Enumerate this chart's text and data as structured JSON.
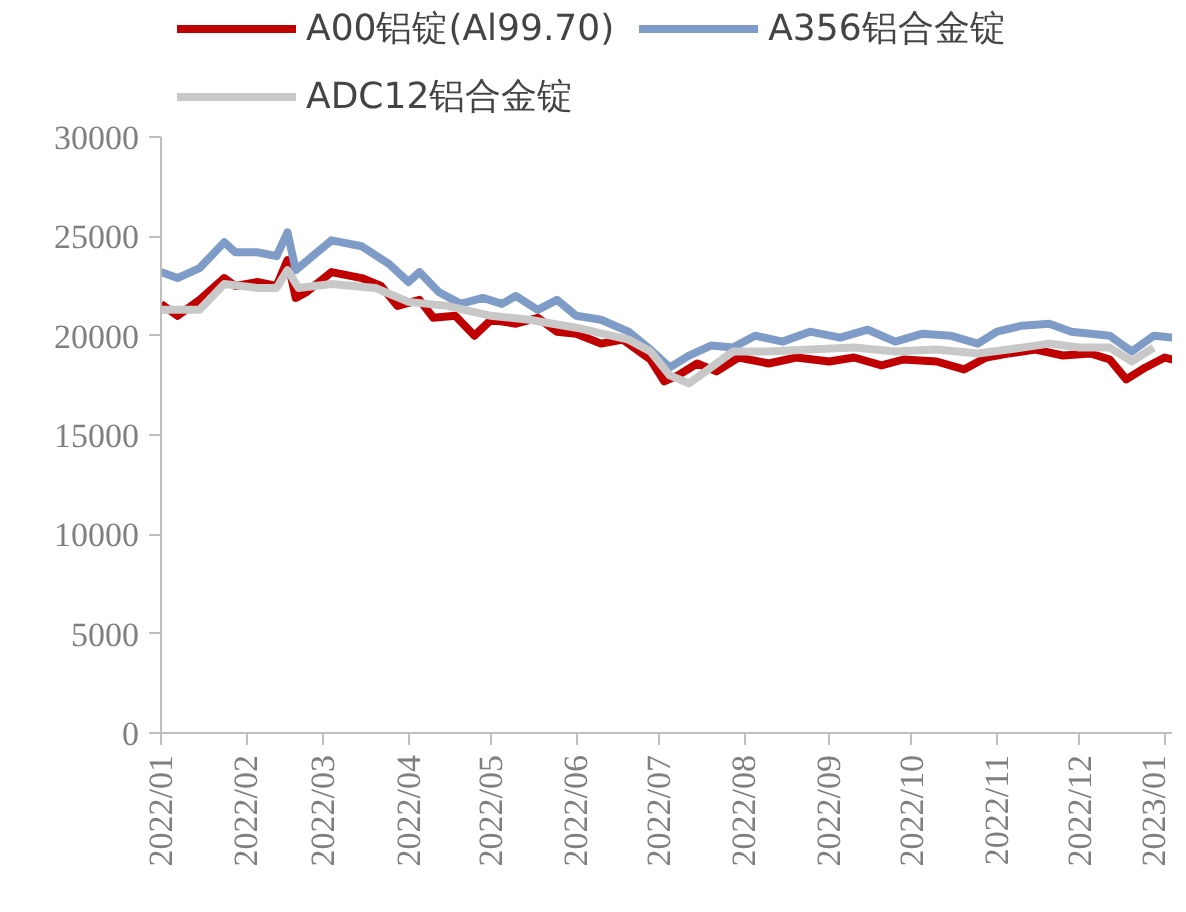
{
  "chart_data": {
    "type": "line",
    "xlim": [
      "2022-01-01",
      "2023-01-04"
    ],
    "ylim": [
      0,
      30000
    ],
    "yticks": [
      0,
      5000,
      10000,
      15000,
      20000,
      25000,
      30000
    ],
    "xticks": [
      {
        "value": "2022-01-01",
        "label": "2022/01"
      },
      {
        "value": "2022-02-01",
        "label": "2022/02"
      },
      {
        "value": "2022-03-01",
        "label": "2022/03"
      },
      {
        "value": "2022-04-01",
        "label": "2022/04"
      },
      {
        "value": "2022-05-01",
        "label": "2022/05"
      },
      {
        "value": "2022-06-01",
        "label": "2022/06"
      },
      {
        "value": "2022-07-01",
        "label": "2022/07"
      },
      {
        "value": "2022-08-01",
        "label": "2022/08"
      },
      {
        "value": "2022-09-01",
        "label": "2022/09"
      },
      {
        "value": "2022-10-01",
        "label": "2022/10"
      },
      {
        "value": "2022-11-01",
        "label": "2022/11"
      },
      {
        "value": "2022-12-01",
        "label": "2022/12"
      },
      {
        "value": "2023-01-01",
        "label": "2023/01"
      }
    ],
    "grid": false,
    "legend": "top",
    "marker": "none",
    "line_style": "solid",
    "series": [
      {
        "name": "A00铝锭(Al99.70)",
        "color": "#c00000",
        "x": [
          "2022-01-01",
          "2022-01-07",
          "2022-01-15",
          "2022-01-24",
          "2022-01-28",
          "2022-02-05",
          "2022-02-12",
          "2022-02-16",
          "2022-02-19",
          "2022-02-23",
          "2022-03-04",
          "2022-03-15",
          "2022-03-22",
          "2022-03-28",
          "2022-04-05",
          "2022-04-10",
          "2022-04-18",
          "2022-04-25",
          "2022-05-01",
          "2022-05-10",
          "2022-05-18",
          "2022-05-25",
          "2022-06-01",
          "2022-06-10",
          "2022-06-18",
          "2022-06-28",
          "2022-07-03",
          "2022-07-08",
          "2022-07-15",
          "2022-07-22",
          "2022-07-30",
          "2022-08-10",
          "2022-08-20",
          "2022-09-01",
          "2022-09-10",
          "2022-09-20",
          "2022-09-28",
          "2022-10-10",
          "2022-10-20",
          "2022-10-28",
          "2022-11-05",
          "2022-11-15",
          "2022-11-25",
          "2022-12-05",
          "2022-12-12",
          "2022-12-18",
          "2022-12-25",
          "2023-01-01",
          "2023-01-04"
        ],
        "values": [
          21600,
          21000,
          21800,
          22900,
          22500,
          22700,
          22500,
          23800,
          21900,
          22200,
          23200,
          22900,
          22500,
          21500,
          21800,
          20900,
          21000,
          20000,
          20800,
          20600,
          20900,
          20200,
          20100,
          19600,
          19800,
          18800,
          17700,
          18000,
          18600,
          18200,
          18900,
          18600,
          18900,
          18700,
          18900,
          18500,
          18800,
          18700,
          18300,
          18900,
          19100,
          19300,
          19000,
          19100,
          18800,
          17800,
          18400,
          18900,
          18800
        ]
      },
      {
        "name": "A356铝合金锭",
        "color": "#7f9cc8",
        "x": [
          "2022-01-01",
          "2022-01-07",
          "2022-01-15",
          "2022-01-24",
          "2022-01-28",
          "2022-02-05",
          "2022-02-12",
          "2022-02-16",
          "2022-02-19",
          "2022-03-04",
          "2022-03-15",
          "2022-03-25",
          "2022-04-01",
          "2022-04-05",
          "2022-04-12",
          "2022-04-20",
          "2022-04-28",
          "2022-05-05",
          "2022-05-10",
          "2022-05-18",
          "2022-05-25",
          "2022-06-01",
          "2022-06-10",
          "2022-06-20",
          "2022-06-28",
          "2022-07-05",
          "2022-07-12",
          "2022-07-20",
          "2022-07-28",
          "2022-08-05",
          "2022-08-15",
          "2022-08-25",
          "2022-09-05",
          "2022-09-15",
          "2022-09-25",
          "2022-10-05",
          "2022-10-15",
          "2022-10-25",
          "2022-11-01",
          "2022-11-10",
          "2022-11-20",
          "2022-11-28",
          "2022-12-05",
          "2022-12-12",
          "2022-12-20",
          "2022-12-28",
          "2023-01-04"
        ],
        "values": [
          23200,
          22900,
          23400,
          24700,
          24200,
          24200,
          24000,
          25200,
          23300,
          24800,
          24500,
          23600,
          22700,
          23200,
          22200,
          21600,
          21900,
          21600,
          22000,
          21300,
          21800,
          21000,
          20800,
          20200,
          19300,
          18400,
          19000,
          19500,
          19400,
          20000,
          19700,
          20200,
          19900,
          20300,
          19700,
          20100,
          20000,
          19600,
          20200,
          20500,
          20600,
          20200,
          20100,
          20000,
          19200,
          20000,
          19900
        ]
      },
      {
        "name": "ADC12铝合金锭",
        "color": "#c8c8c8",
        "x": [
          "2022-01-01",
          "2022-01-15",
          "2022-01-24",
          "2022-02-05",
          "2022-02-12",
          "2022-02-16",
          "2022-02-20",
          "2022-03-04",
          "2022-03-20",
          "2022-04-01",
          "2022-04-15",
          "2022-05-01",
          "2022-05-15",
          "2022-06-01",
          "2022-06-20",
          "2022-06-28",
          "2022-07-05",
          "2022-07-12",
          "2022-07-18",
          "2022-07-28",
          "2022-08-10",
          "2022-08-25",
          "2022-09-10",
          "2022-09-25",
          "2022-10-10",
          "2022-10-25",
          "2022-11-05",
          "2022-11-20",
          "2022-12-01",
          "2022-12-12",
          "2022-12-20",
          "2022-12-28"
        ],
        "values": [
          21300,
          21300,
          22600,
          22400,
          22400,
          23300,
          22400,
          22600,
          22400,
          21700,
          21500,
          21000,
          20800,
          20400,
          19800,
          19200,
          18000,
          17600,
          18200,
          19200,
          19200,
          19300,
          19400,
          19200,
          19300,
          19100,
          19300,
          19600,
          19400,
          19400,
          18700,
          19400
        ]
      }
    ]
  }
}
